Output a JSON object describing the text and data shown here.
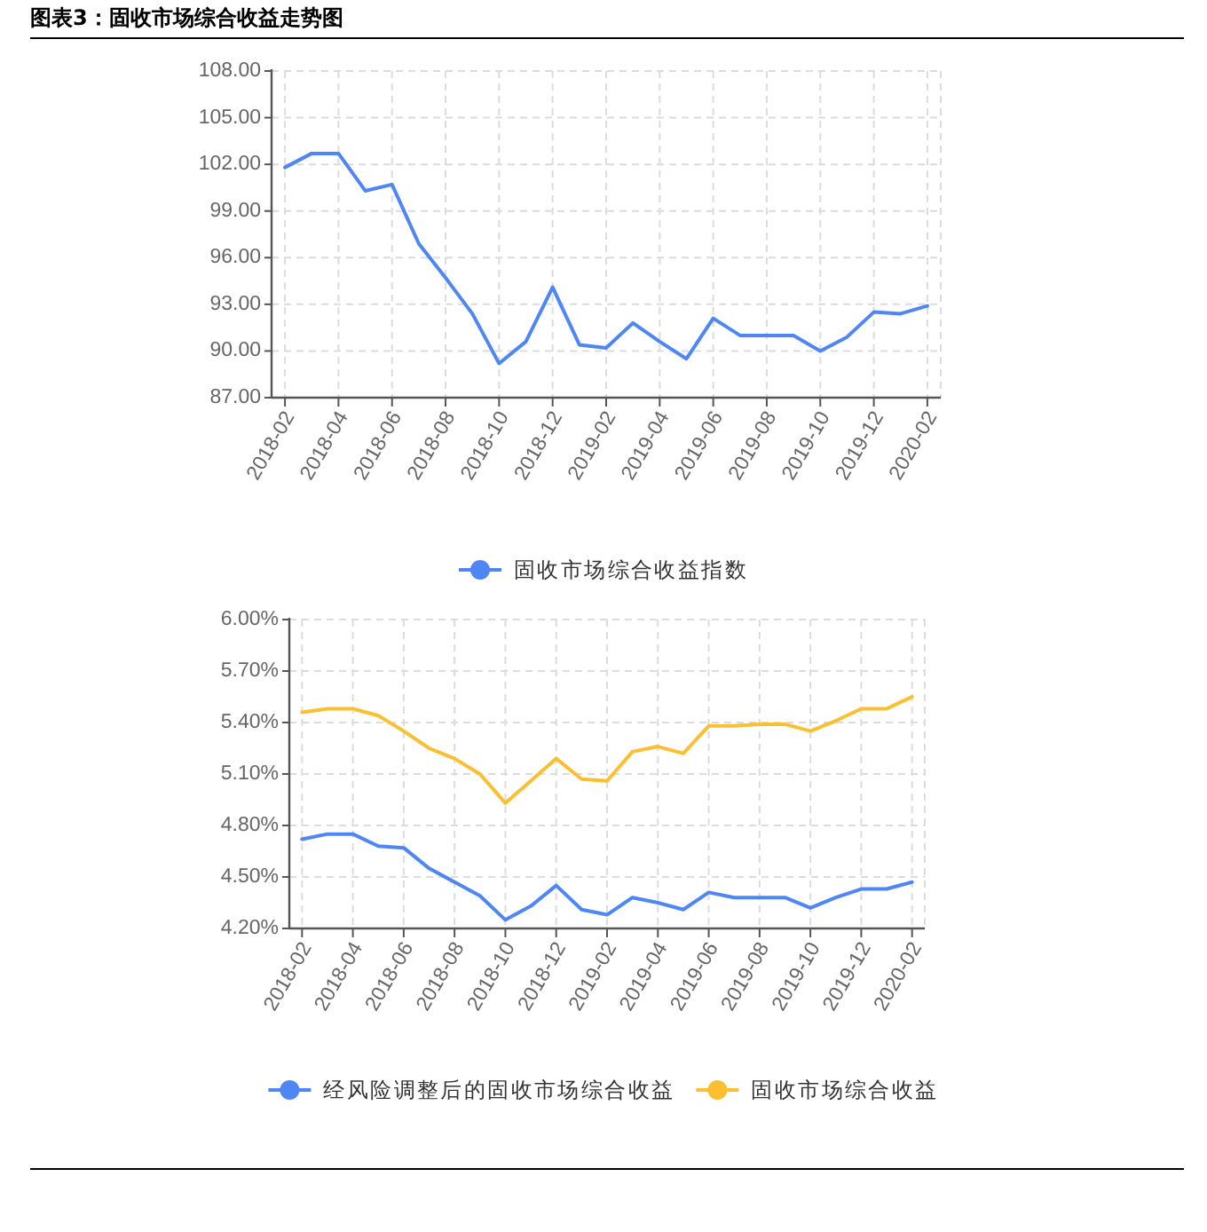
{
  "chart_data": [
    {
      "type": "line",
      "title": "图表3：固收市场综合收益走势图",
      "categories": [
        "2018-02",
        null,
        "2018-04",
        null,
        "2018-06",
        null,
        "2018-08",
        null,
        "2018-10",
        null,
        "2018-12",
        null,
        "2019-02",
        null,
        "2019-04",
        null,
        "2019-06",
        null,
        "2019-08",
        null,
        "2019-10",
        null,
        "2019-12",
        null,
        "2020-02"
      ],
      "series": [
        {
          "name": "固收市场综合收益指数",
          "color": "#4e86f5",
          "values": [
            101.8,
            102.7,
            102.7,
            100.3,
            100.7,
            96.9,
            94.7,
            92.4,
            89.2,
            90.6,
            94.1,
            90.4,
            90.2,
            91.8,
            90.6,
            89.5,
            92.1,
            91.0,
            91.0,
            91.0,
            90.0,
            90.9,
            92.5,
            92.4,
            92.9
          ]
        }
      ],
      "ylim": [
        87,
        108
      ],
      "yticks": [
        {
          "value": 87,
          "label": "87.00"
        },
        {
          "value": 90,
          "label": "90.00"
        },
        {
          "value": 93,
          "label": "93.00"
        },
        {
          "value": 96,
          "label": "96.00"
        },
        {
          "value": 99,
          "label": "99.00"
        },
        {
          "value": 102,
          "label": "102.00"
        },
        {
          "value": 105,
          "label": "105.00"
        },
        {
          "value": 108,
          "label": "108.00"
        }
      ],
      "grid": true,
      "legend": "bottom"
    },
    {
      "type": "line",
      "categories": [
        "2018-02",
        null,
        "2018-04",
        null,
        "2018-06",
        null,
        "2018-08",
        null,
        "2018-10",
        null,
        "2018-12",
        null,
        "2019-02",
        null,
        "2019-04",
        null,
        "2019-06",
        null,
        "2019-08",
        null,
        "2019-10",
        null,
        "2019-12",
        null,
        "2020-02"
      ],
      "series": [
        {
          "name": "经风险调整后的固收市场综合收益",
          "color": "#4e86f5",
          "values": [
            4.72,
            4.75,
            4.75,
            4.68,
            4.67,
            4.55,
            4.47,
            4.39,
            4.25,
            4.33,
            4.45,
            4.31,
            4.28,
            4.38,
            4.35,
            4.31,
            4.41,
            4.38,
            4.38,
            4.38,
            4.32,
            4.38,
            4.43,
            4.43,
            4.47
          ]
        },
        {
          "name": "固收市场综合收益",
          "color": "#fbbf2f",
          "values": [
            5.46,
            5.48,
            5.48,
            5.44,
            5.35,
            5.25,
            5.19,
            5.1,
            4.93,
            5.06,
            5.19,
            5.07,
            5.06,
            5.23,
            5.26,
            5.22,
            5.38,
            5.38,
            5.39,
            5.39,
            5.35,
            5.41,
            5.48,
            5.48,
            5.55
          ]
        }
      ],
      "ylim": [
        4.2,
        6.0
      ],
      "yticks": [
        {
          "value": 4.2,
          "label": "4.20%"
        },
        {
          "value": 4.5,
          "label": "4.50%"
        },
        {
          "value": 4.8,
          "label": "4.80%"
        },
        {
          "value": 5.1,
          "label": "5.10%"
        },
        {
          "value": 5.4,
          "label": "5.40%"
        },
        {
          "value": 5.7,
          "label": "5.70%"
        },
        {
          "value": 6.0,
          "label": "6.00%"
        }
      ],
      "grid": true,
      "legend": "bottom"
    }
  ]
}
